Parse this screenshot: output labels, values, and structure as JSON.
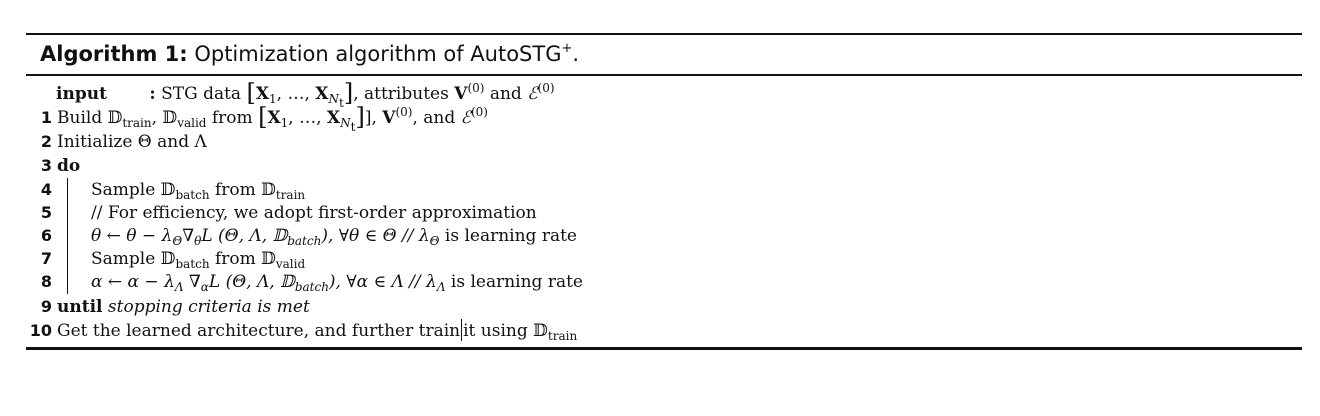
{
  "algorithm": {
    "label": "Algorithm 1:",
    "title": "Optimization algorithm of AutoSTG",
    "title_sup": "+",
    "title_end": ".",
    "input": {
      "keyword": "input",
      "colon": ":",
      "text_a": "STG data",
      "X1": "X",
      "sub1": "1",
      "dots": ", …, ",
      "XN": "X",
      "subN": "N",
      "subt": "t",
      "text_b": ", attributes",
      "V": "V",
      "V_sup": "(0)",
      "and": "and",
      "E": "ℰ",
      "E_sup": "(0)"
    },
    "lines": [
      {
        "num": "1",
        "text": "Build 𝔻",
        "sub1": "train",
        "mid": ", 𝔻",
        "sub2": "valid",
        "rest": " from"
      },
      {
        "num": "2",
        "text": "Initialize Θ and Λ"
      },
      {
        "num": "3",
        "keyword": "do"
      },
      {
        "num": "4",
        "text": "Sample 𝔻",
        "sub1": "batch",
        "mid": " from 𝔻",
        "sub2": "train"
      },
      {
        "num": "5",
        "text": "// For efficiency, we adopt first-order approximation"
      },
      {
        "num": "6",
        "a": "θ ← θ − λ",
        "sub_a": "Θ",
        "b": "∇",
        "sub_b": "θ",
        "c": "L (Θ, Λ, 𝔻",
        "sub_c": "batch",
        "d": "), ∀θ ∈ Θ // λ",
        "sub_d": "Θ",
        "e": " is learning rate"
      },
      {
        "num": "7",
        "text": "Sample 𝔻",
        "sub1": "batch",
        "mid": " from 𝔻",
        "sub2": "valid"
      },
      {
        "num": "8",
        "a": "α ← α − λ",
        "sub_a": "Λ",
        "b": " ∇",
        "sub_b": "α",
        "c": "L (Θ, Λ, 𝔻",
        "sub_c": "batch",
        "d": "), ∀α ∈ Λ // λ",
        "sub_d": "Λ",
        "e": " is learning rate"
      },
      {
        "num": "9",
        "keyword": "until",
        "text": "stopping criteria is met"
      },
      {
        "num": "10",
        "text_a": "Get the learned architecture, and further train",
        "text_b": "it using 𝔻",
        "sub": "train"
      }
    ],
    "line1_tail": {
      "X1": "X",
      "sub1": "1",
      "dots": ", …, ",
      "XN": "X",
      "subN": "N",
      "subt": "t",
      "comma": "],",
      "V": "V",
      "V_sup": "(0)",
      "and": ", and",
      "E": "ℰ",
      "E_sup": "(0)"
    }
  }
}
